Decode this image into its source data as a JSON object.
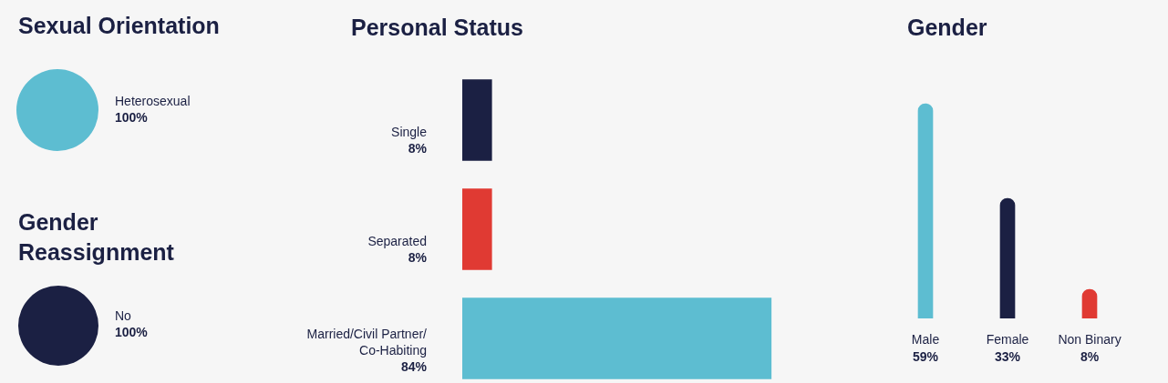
{
  "chart_data": [
    {
      "type": "pie",
      "title": "Sexual Orientation",
      "categories": [
        "Heterosexual"
      ],
      "values": [
        100
      ],
      "colors": [
        "#5dbdd1"
      ],
      "value_labels": [
        "100%"
      ]
    },
    {
      "type": "pie",
      "title": "Gender Reassignment",
      "categories": [
        "No"
      ],
      "values": [
        100
      ],
      "colors": [
        "#1b2043"
      ],
      "value_labels": [
        "100%"
      ]
    },
    {
      "type": "bar",
      "orientation": "horizontal",
      "title": "Personal Status",
      "categories": [
        "Single",
        "Separated",
        "Married/Civil Partner/Co-Habiting"
      ],
      "values": [
        8,
        8,
        84
      ],
      "colors": [
        "#1b2043",
        "#e03a33",
        "#5dbdd1"
      ],
      "value_labels": [
        "8%",
        "8%",
        "84%"
      ]
    },
    {
      "type": "bar",
      "title": "Gender",
      "categories": [
        "Male",
        "Female",
        "Non Binary"
      ],
      "values": [
        59,
        33,
        8
      ],
      "colors": [
        "#5dbdd1",
        "#1b2043",
        "#e03a33"
      ],
      "value_labels": [
        "59%",
        "33%",
        "8%"
      ]
    }
  ]
}
